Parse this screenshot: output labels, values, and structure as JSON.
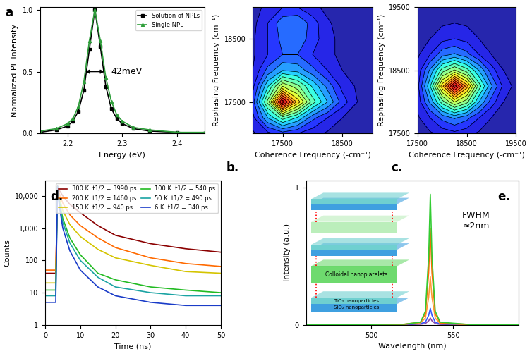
{
  "chart_data": [
    {
      "type": "line",
      "panel_label": "a",
      "xlabel": "Energy (eV)",
      "ylabel": "Normalized PL Intensity",
      "x": [
        2.15,
        2.18,
        2.2,
        2.21,
        2.22,
        2.23,
        2.24,
        2.25,
        2.26,
        2.27,
        2.28,
        2.29,
        2.3,
        2.32,
        2.35,
        2.4,
        2.45
      ],
      "series": [
        {
          "name": "Solution of NPLs",
          "color": "#000000",
          "marker": "square",
          "values": [
            0.01,
            0.03,
            0.06,
            0.1,
            0.18,
            0.35,
            0.68,
            1.0,
            0.7,
            0.38,
            0.2,
            0.12,
            0.08,
            0.04,
            0.02,
            0.01,
            0.005
          ]
        },
        {
          "name": "Single NPL",
          "color": "#2e9e3a",
          "marker": "triangle",
          "values": [
            0.02,
            0.04,
            0.08,
            0.12,
            0.22,
            0.42,
            0.75,
            1.0,
            0.75,
            0.45,
            0.26,
            0.15,
            0.1,
            0.05,
            0.03,
            0.01,
            0.01
          ]
        }
      ],
      "fwhm": {
        "text": "42meV",
        "start": 2.229,
        "end": 2.271,
        "y": 0.5
      },
      "xlim": [
        2.15,
        2.45
      ],
      "xticks": [
        2.2,
        2.3,
        2.4
      ],
      "ylim": [
        0,
        1.02
      ],
      "yticks": [
        {
          "value": 0,
          "label": "0.0"
        },
        {
          "value": 0.5,
          "label": "0.5"
        },
        {
          "value": 1,
          "label": "1.0"
        }
      ],
      "legend": "upper right"
    },
    {
      "type": "contour",
      "panel_label": "b.",
      "xlabel": "Coherence Frequency (-cm⁻¹)",
      "ylabel": "Rephasing Frequency (cm⁻¹)",
      "x": [
        17000,
        17250,
        17500,
        17750,
        18000,
        18250,
        18500,
        18750,
        19000
      ],
      "y": [
        17000,
        17250,
        17500,
        17750,
        18000,
        18250,
        18500,
        18750,
        19000
      ],
      "z": [
        [
          0.05,
          0.1,
          0.15,
          0.12,
          0.08,
          0.05,
          0.03,
          0.02,
          0.01
        ],
        [
          0.1,
          0.3,
          0.45,
          0.35,
          0.2,
          0.12,
          0.06,
          0.03,
          0.02
        ],
        [
          0.15,
          0.5,
          1.0,
          0.7,
          0.45,
          0.3,
          0.15,
          0.06,
          0.03
        ],
        [
          0.1,
          0.35,
          0.6,
          0.5,
          0.35,
          0.22,
          0.1,
          0.05,
          0.02
        ],
        [
          0.06,
          0.2,
          0.3,
          0.28,
          0.2,
          0.12,
          0.06,
          0.03,
          0.02
        ],
        [
          0.05,
          0.12,
          0.18,
          0.18,
          0.12,
          0.08,
          0.04,
          0.02,
          0.01
        ],
        [
          0.05,
          0.12,
          0.2,
          0.22,
          0.15,
          0.08,
          0.04,
          0.02,
          0.01
        ],
        [
          0.04,
          0.12,
          0.22,
          0.24,
          0.15,
          0.07,
          0.03,
          0.02,
          0.01
        ],
        [
          0.03,
          0.08,
          0.12,
          0.12,
          0.08,
          0.04,
          0.02,
          0.01,
          0.01
        ]
      ],
      "xlim": [
        17000,
        19000
      ],
      "xticks": [
        17500,
        18500
      ],
      "ylim": [
        17000,
        19000
      ],
      "yticks": [
        17500,
        18500
      ]
    },
    {
      "type": "contour",
      "panel_label": "c.",
      "xlabel": "Coherence Frequency (-cm⁻¹)",
      "ylabel": "Rephasing Frequency (cm⁻¹)",
      "x": [
        17500,
        17750,
        18000,
        18250,
        18500,
        18750,
        19000,
        19250,
        19500
      ],
      "y": [
        17500,
        17750,
        18000,
        18250,
        18500,
        18750,
        19000,
        19250,
        19500
      ],
      "z": [
        [
          0.03,
          0.05,
          0.08,
          0.1,
          0.08,
          0.05,
          0.03,
          0.02,
          0.01
        ],
        [
          0.05,
          0.12,
          0.2,
          0.25,
          0.2,
          0.12,
          0.06,
          0.03,
          0.02
        ],
        [
          0.08,
          0.25,
          0.45,
          0.6,
          0.5,
          0.3,
          0.15,
          0.06,
          0.03
        ],
        [
          0.1,
          0.35,
          0.7,
          1.0,
          0.75,
          0.45,
          0.25,
          0.1,
          0.04
        ],
        [
          0.08,
          0.25,
          0.45,
          0.55,
          0.45,
          0.3,
          0.15,
          0.06,
          0.03
        ],
        [
          0.05,
          0.12,
          0.22,
          0.25,
          0.2,
          0.12,
          0.06,
          0.03,
          0.02
        ],
        [
          0.03,
          0.06,
          0.1,
          0.12,
          0.1,
          0.06,
          0.03,
          0.02,
          0.01
        ],
        [
          0.02,
          0.04,
          0.05,
          0.06,
          0.05,
          0.03,
          0.02,
          0.01,
          0.01
        ],
        [
          0.01,
          0.02,
          0.03,
          0.03,
          0.03,
          0.02,
          0.01,
          0.01,
          0.01
        ]
      ],
      "xlim": [
        17500,
        19500
      ],
      "xticks": [
        17500,
        18500,
        19500
      ],
      "ylim": [
        17500,
        19500
      ],
      "yticks": [
        17500,
        18500,
        19500
      ]
    },
    {
      "type": "line",
      "panel_label": "d.",
      "log": "y",
      "xlabel": "Time (ns)",
      "ylabel": "Counts",
      "x": [
        0,
        3,
        3.5,
        4,
        5,
        7,
        10,
        15,
        20,
        30,
        40,
        50
      ],
      "series": [
        {
          "name": "300 K  t1/2 = 3990 ps",
          "color": "#8b0000",
          "values": [
            40,
            40,
            20000,
            15000,
            10000,
            5500,
            3000,
            1200,
            600,
            330,
            230,
            180
          ]
        },
        {
          "name": "200 K  t1/2 = 1460 ps",
          "color": "#ff6a00",
          "values": [
            50,
            50,
            20000,
            12000,
            6000,
            2600,
            1200,
            500,
            250,
            120,
            80,
            65
          ]
        },
        {
          "name": "150 K  t1/2 = 940 ps",
          "color": "#d4c400",
          "values": [
            20,
            20,
            20000,
            9000,
            3500,
            1300,
            550,
            220,
            120,
            70,
            45,
            40
          ]
        },
        {
          "name": "100 K  t1/2 = 540 ps",
          "color": "#22bb22",
          "values": [
            12,
            12,
            20000,
            7000,
            2000,
            500,
            150,
            40,
            25,
            15,
            12,
            10
          ]
        },
        {
          "name": "50 K  t1/2 = 490 ps",
          "color": "#1aa3a3",
          "values": [
            8,
            8,
            20000,
            6000,
            1500,
            350,
            100,
            30,
            15,
            10,
            8,
            8
          ]
        },
        {
          "name": "6 K  t1/2 = 340 ps",
          "color": "#1a3cc8",
          "values": [
            5,
            5,
            20000,
            5000,
            1000,
            200,
            50,
            15,
            8,
            5,
            4,
            4
          ]
        }
      ],
      "xlim": [
        0,
        50
      ],
      "xticks": [
        0,
        10,
        20,
        30,
        40,
        50
      ],
      "ylim": [
        1,
        30000
      ],
      "yticks": [
        1,
        10,
        100,
        {
          "value": 1000,
          "label": "1,000"
        },
        {
          "value": 10000,
          "label": "10,000"
        }
      ],
      "legend": "upper right"
    },
    {
      "type": "line",
      "panel_label": "e.",
      "xlabel": "Wavelength (nm)",
      "ylabel": "Intensity (a.u.)",
      "annotation": "FWHM\n≈2nm",
      "inset_labels": [
        "Colloidal nanoplatelets",
        "TiO₂ nanoparticles",
        "SiO₂ nanoparticles"
      ],
      "x": [
        460,
        520,
        530,
        533,
        535,
        536,
        537,
        539,
        542,
        560,
        590
      ],
      "series": [
        {
          "color": "#8844aa",
          "values": [
            0,
            0.002,
            0.005,
            0.01,
            0.03,
            0.05,
            0.03,
            0.01,
            0.004,
            0.001,
            0
          ]
        },
        {
          "color": "#3355ff",
          "values": [
            0,
            0.003,
            0.01,
            0.02,
            0.07,
            0.12,
            0.07,
            0.02,
            0.008,
            0.002,
            0
          ]
        },
        {
          "color": "#ff9933",
          "values": [
            0,
            0.004,
            0.015,
            0.05,
            0.2,
            0.35,
            0.2,
            0.05,
            0.01,
            0.002,
            0
          ]
        },
        {
          "color": "#ff6a00",
          "values": [
            0,
            0.005,
            0.02,
            0.08,
            0.38,
            0.7,
            0.38,
            0.08,
            0.015,
            0.003,
            0
          ]
        },
        {
          "color": "#33cc33",
          "values": [
            0,
            0.005,
            0.02,
            0.1,
            0.5,
            0.95,
            0.5,
            0.1,
            0.02,
            0.003,
            0
          ]
        }
      ],
      "xlim": [
        460,
        590
      ],
      "xticks": [
        500,
        550
      ],
      "ylim": [
        0,
        1.05
      ],
      "yticks": [
        0,
        1
      ]
    }
  ]
}
